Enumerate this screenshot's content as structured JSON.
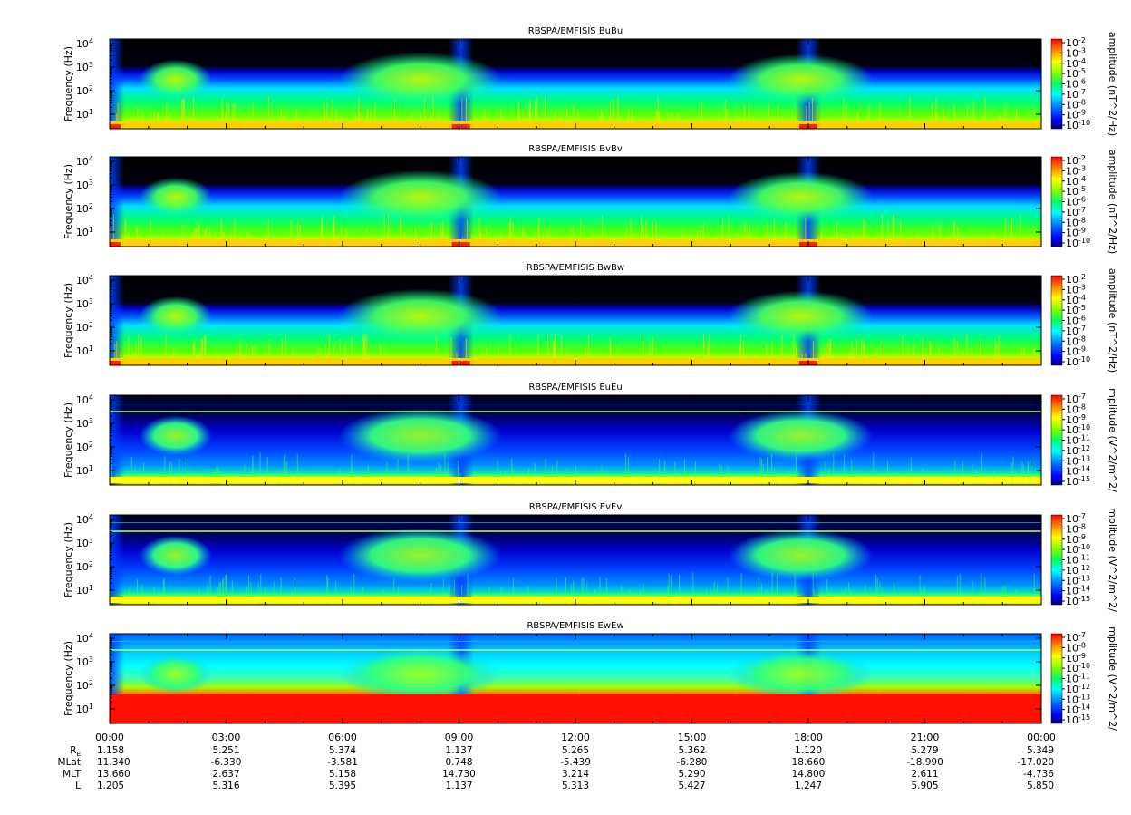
{
  "chart_data": {
    "type": "heatmap",
    "x_axis": {
      "tick_labels": [
        "00:00",
        "03:00",
        "06:00",
        "09:00",
        "12:00",
        "15:00",
        "18:00",
        "21:00",
        "00:00"
      ]
    },
    "ephemeris": {
      "rows": [
        {
          "label": "R",
          "sub": "E",
          "values": [
            "1.158",
            "5.251",
            "5.374",
            "1.137",
            "5.265",
            "5.362",
            "1.120",
            "5.279",
            "5.349"
          ]
        },
        {
          "label": "MLat",
          "sub": "",
          "values": [
            "11.340",
            "-6.330",
            "-3.581",
            "0.748",
            "-5.439",
            "-6.280",
            "18.660",
            "-18.990",
            "-17.020"
          ]
        },
        {
          "label": "MLT",
          "sub": "",
          "values": [
            "13.660",
            "2.637",
            "5.158",
            "14.730",
            "3.214",
            "5.290",
            "14.800",
            "2.611",
            "-4.736"
          ]
        },
        {
          "label": "L",
          "sub": "",
          "values": [
            "1.205",
            "5.316",
            "5.395",
            "1.137",
            "5.313",
            "5.427",
            "1.247",
            "5.905",
            "5.850"
          ]
        }
      ]
    },
    "panels": [
      {
        "title": "RBSPA/EMFISIS  BuBu",
        "ylabel": "Frequency (Hz)",
        "yticks": [
          "10",
          "10",
          "10",
          "10"
        ],
        "ytick_exps": [
          "1",
          "2",
          "3",
          "4"
        ],
        "colorbar_label": "amplitude (nT^2/Hz)",
        "cbar_ticks": [
          "10",
          "10",
          "10",
          "10",
          "10",
          "10",
          "10",
          "10",
          "10"
        ],
        "cbar_exps": [
          "-2",
          "-3",
          "-4",
          "-5",
          "-6",
          "-7",
          "-8",
          "-9",
          "-10"
        ],
        "kind": "B"
      },
      {
        "title": "RBSPA/EMFISIS  BvBv",
        "ylabel": "Frequency (Hz)",
        "yticks": [
          "10",
          "10",
          "10",
          "10"
        ],
        "ytick_exps": [
          "1",
          "2",
          "3",
          "4"
        ],
        "colorbar_label": "amplitude (nT^2/Hz)",
        "cbar_ticks": [
          "10",
          "10",
          "10",
          "10",
          "10",
          "10",
          "10",
          "10",
          "10"
        ],
        "cbar_exps": [
          "-2",
          "-3",
          "-4",
          "-5",
          "-6",
          "-7",
          "-8",
          "-9",
          "-10"
        ],
        "kind": "B"
      },
      {
        "title": "RBSPA/EMFISIS  BwBw",
        "ylabel": "Frequency (Hz)",
        "yticks": [
          "10",
          "10",
          "10",
          "10"
        ],
        "ytick_exps": [
          "1",
          "2",
          "3",
          "4"
        ],
        "colorbar_label": "amplitude (nT^2/Hz)",
        "cbar_ticks": [
          "10",
          "10",
          "10",
          "10",
          "10",
          "10",
          "10",
          "10",
          "10"
        ],
        "cbar_exps": [
          "-2",
          "-3",
          "-4",
          "-5",
          "-6",
          "-7",
          "-8",
          "-9",
          "-10"
        ],
        "kind": "B"
      },
      {
        "title": "RBSPA/EMFISIS  EuEu",
        "ylabel": "Frequency (Hz)",
        "yticks": [
          "10",
          "10",
          "10",
          "10"
        ],
        "ytick_exps": [
          "1",
          "2",
          "3",
          "4"
        ],
        "colorbar_label": "mplitude (V^2/m^2/",
        "cbar_ticks": [
          "10",
          "10",
          "10",
          "10",
          "10",
          "10",
          "10",
          "10",
          "10"
        ],
        "cbar_exps": [
          "-7",
          "-8",
          "-9",
          "-10",
          "-11",
          "-12",
          "-13",
          "-14",
          "-15"
        ],
        "kind": "E"
      },
      {
        "title": "RBSPA/EMFISIS  EvEv",
        "ylabel": "Frequency (Hz)",
        "yticks": [
          "10",
          "10",
          "10",
          "10"
        ],
        "ytick_exps": [
          "1",
          "2",
          "3",
          "4"
        ],
        "colorbar_label": "mplitude (V^2/m^2/",
        "cbar_ticks": [
          "10",
          "10",
          "10",
          "10",
          "10",
          "10",
          "10",
          "10",
          "10"
        ],
        "cbar_exps": [
          "-7",
          "-8",
          "-9",
          "-10",
          "-11",
          "-12",
          "-13",
          "-14",
          "-15"
        ],
        "kind": "E"
      },
      {
        "title": "RBSPA/EMFISIS  EwEw",
        "ylabel": "Frequency (Hz)",
        "yticks": [
          "10",
          "10",
          "10",
          "10"
        ],
        "ytick_exps": [
          "1",
          "2",
          "3",
          "4"
        ],
        "colorbar_label": "mplitude (V^2/m^2/",
        "cbar_ticks": [
          "10",
          "10",
          "10",
          "10",
          "10",
          "10",
          "10",
          "10",
          "10"
        ],
        "cbar_exps": [
          "-7",
          "-8",
          "-9",
          "-10",
          "-11",
          "-12",
          "-13",
          "-14",
          "-15"
        ],
        "kind": "EW"
      }
    ],
    "colormap": [
      "#000080",
      "#0000ff",
      "#0080ff",
      "#00ffff",
      "#00ff80",
      "#80ff00",
      "#ffff00",
      "#ff8000",
      "#ff0000"
    ]
  }
}
